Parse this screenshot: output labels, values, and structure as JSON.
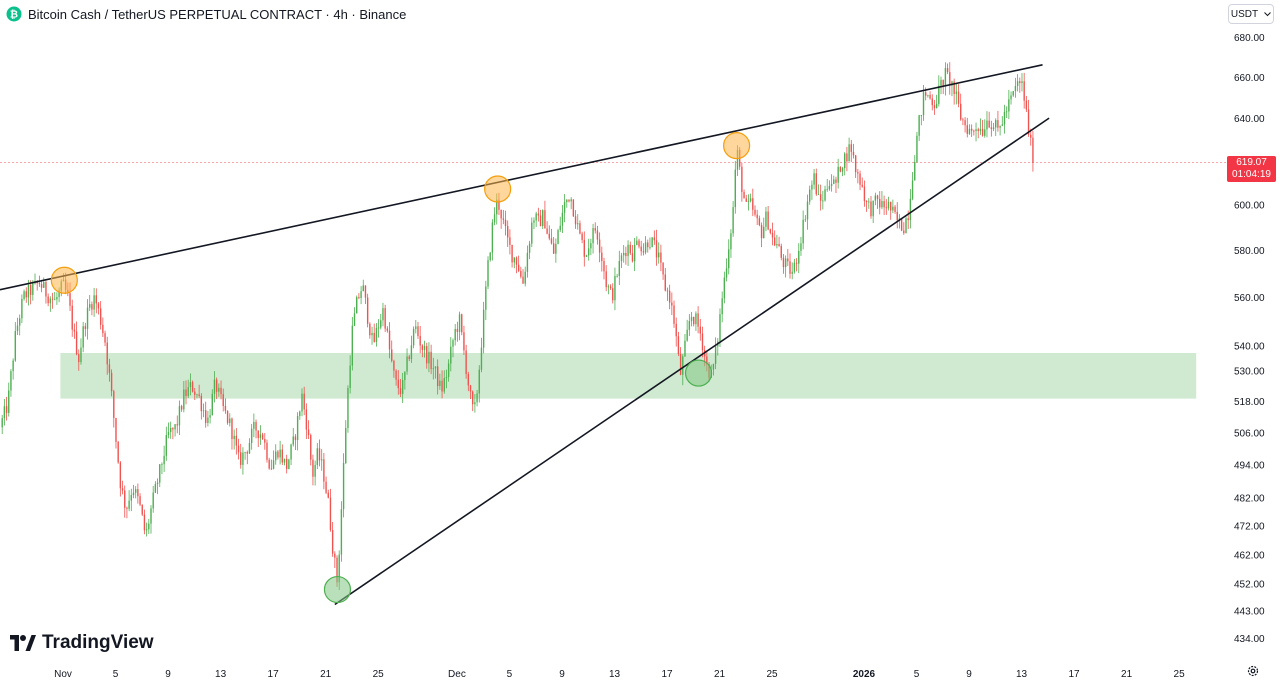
{
  "header": {
    "title": "Bitcoin Cash / TetherUS PERPETUAL CONTRACT · 4h · Binance",
    "symbol_icon": "bitcoin-cash-icon"
  },
  "currency_button": {
    "label": "USDT",
    "icon": "chevron-down-icon"
  },
  "last_price": {
    "value": "619.07",
    "countdown": "01:04:19",
    "color": "#f23645"
  },
  "branding": {
    "logo_text": "TradingView"
  },
  "settings_icon": "gear-icon",
  "colors": {
    "up": "#26a69a",
    "up_body": "#4caf50",
    "down": "#ef5350",
    "zone": "#c8e6c9",
    "top_marker": "#ffb74d",
    "bottom_marker": "#81c784"
  },
  "chart_data": {
    "type": "candlestick",
    "scale": "log",
    "y_ticks": [
      "680.00",
      "660.00",
      "640.00",
      "620.00",
      "600.00",
      "580.00",
      "560.00",
      "540.00",
      "530.00",
      "518.00",
      "506.00",
      "494.00",
      "482.00",
      "472.00",
      "462.00",
      "452.00",
      "443.00",
      "434.00"
    ],
    "y_tick_values": [
      680,
      660,
      640,
      620,
      600,
      580,
      560,
      540,
      530,
      518,
      506,
      494,
      482,
      472,
      462,
      452,
      443,
      434
    ],
    "x_ticks": [
      "Nov",
      "5",
      "9",
      "13",
      "17",
      "21",
      "25",
      "Dec",
      "5",
      "9",
      "13",
      "17",
      "21",
      "25",
      "2026",
      "5",
      "9",
      "13",
      "17",
      "21",
      "25"
    ],
    "x_tick_days": [
      0,
      4,
      8,
      12,
      16,
      20,
      24,
      30,
      34,
      38,
      42,
      46,
      50,
      54,
      61,
      65,
      69,
      73,
      77,
      81,
      85
    ],
    "ylim": [
      428,
      690
    ],
    "xlim_days": [
      -4.8,
      87.2
    ],
    "close_path": [
      [
        -4.8,
        508
      ],
      [
        -4.2,
        517
      ],
      [
        -3.6,
        545
      ],
      [
        -3.0,
        560
      ],
      [
        -2.4,
        563
      ],
      [
        -1.8,
        566
      ],
      [
        -1.2,
        561
      ],
      [
        -0.6,
        558
      ],
      [
        0.0,
        565
      ],
      [
        0.4,
        559
      ],
      [
        0.8,
        545
      ],
      [
        1.2,
        535
      ],
      [
        1.6,
        548
      ],
      [
        2.0,
        556
      ],
      [
        2.4,
        560
      ],
      [
        2.8,
        552
      ],
      [
        3.2,
        542
      ],
      [
        3.6,
        525
      ],
      [
        4.0,
        505
      ],
      [
        4.4,
        486
      ],
      [
        4.8,
        478
      ],
      [
        5.3,
        486
      ],
      [
        5.8,
        480
      ],
      [
        6.3,
        468
      ],
      [
        6.8,
        480
      ],
      [
        7.4,
        492
      ],
      [
        8.0,
        505
      ],
      [
        8.6,
        508
      ],
      [
        9.2,
        520
      ],
      [
        9.8,
        524
      ],
      [
        10.4,
        519
      ],
      [
        11.0,
        510
      ],
      [
        11.6,
        525
      ],
      [
        12.2,
        515
      ],
      [
        12.8,
        508
      ],
      [
        13.4,
        495
      ],
      [
        14.0,
        500
      ],
      [
        14.6,
        508
      ],
      [
        15.2,
        505
      ],
      [
        15.8,
        493
      ],
      [
        16.4,
        500
      ],
      [
        17.0,
        493
      ],
      [
        17.6,
        503
      ],
      [
        18.2,
        520
      ],
      [
        18.6,
        508
      ],
      [
        19.0,
        490
      ],
      [
        19.4,
        498
      ],
      [
        19.8,
        492
      ],
      [
        20.2,
        480
      ],
      [
        20.6,
        462
      ],
      [
        20.9,
        452
      ],
      [
        21.2,
        478
      ],
      [
        21.6,
        515
      ],
      [
        22.0,
        545
      ],
      [
        22.4,
        558
      ],
      [
        22.8,
        565
      ],
      [
        23.2,
        552
      ],
      [
        23.6,
        540
      ],
      [
        24.0,
        548
      ],
      [
        24.4,
        555
      ],
      [
        24.8,
        540
      ],
      [
        25.3,
        525
      ],
      [
        25.8,
        522
      ],
      [
        26.3,
        535
      ],
      [
        26.8,
        548
      ],
      [
        27.3,
        540
      ],
      [
        27.8,
        535
      ],
      [
        28.3,
        530
      ],
      [
        28.8,
        522
      ],
      [
        29.3,
        530
      ],
      [
        29.8,
        545
      ],
      [
        30.2,
        550
      ],
      [
        30.6,
        535
      ],
      [
        31.0,
        520
      ],
      [
        31.3,
        512
      ],
      [
        31.6,
        525
      ],
      [
        32.0,
        550
      ],
      [
        32.4,
        575
      ],
      [
        32.8,
        595
      ],
      [
        33.1,
        602
      ],
      [
        33.4,
        595
      ],
      [
        33.8,
        585
      ],
      [
        34.2,
        578
      ],
      [
        34.6,
        575
      ],
      [
        35.0,
        565
      ],
      [
        35.4,
        580
      ],
      [
        35.8,
        595
      ],
      [
        36.2,
        592
      ],
      [
        36.6,
        595
      ],
      [
        37.0,
        585
      ],
      [
        37.4,
        578
      ],
      [
        37.8,
        590
      ],
      [
        38.2,
        600
      ],
      [
        38.6,
        605
      ],
      [
        39.0,
        595
      ],
      [
        39.4,
        585
      ],
      [
        39.8,
        578
      ],
      [
        40.2,
        585
      ],
      [
        40.6,
        590
      ],
      [
        41.0,
        578
      ],
      [
        41.4,
        565
      ],
      [
        41.8,
        560
      ],
      [
        42.2,
        570
      ],
      [
        42.6,
        578
      ],
      [
        43.0,
        582
      ],
      [
        43.4,
        578
      ],
      [
        43.8,
        585
      ],
      [
        44.2,
        580
      ],
      [
        44.6,
        585
      ],
      [
        45.0,
        582
      ],
      [
        45.4,
        575
      ],
      [
        45.8,
        565
      ],
      [
        46.2,
        560
      ],
      [
        46.6,
        548
      ],
      [
        47.0,
        528
      ],
      [
        47.4,
        540
      ],
      [
        47.8,
        553
      ],
      [
        48.2,
        550
      ],
      [
        48.6,
        544
      ],
      [
        49.0,
        532
      ],
      [
        49.4,
        528
      ],
      [
        49.8,
        540
      ],
      [
        50.2,
        560
      ],
      [
        50.6,
        578
      ],
      [
        51.0,
        595
      ],
      [
        51.3,
        626
      ],
      [
        51.6,
        612
      ],
      [
        52.0,
        598
      ],
      [
        52.4,
        600
      ],
      [
        52.8,
        592
      ],
      [
        53.2,
        588
      ],
      [
        53.6,
        595
      ],
      [
        54.0,
        585
      ],
      [
        54.4,
        582
      ],
      [
        54.8,
        575
      ],
      [
        55.2,
        572
      ],
      [
        55.6,
        570
      ],
      [
        56.0,
        580
      ],
      [
        56.4,
        592
      ],
      [
        56.8,
        605
      ],
      [
        57.2,
        612
      ],
      [
        57.6,
        600
      ],
      [
        58.0,
        605
      ],
      [
        58.4,
        612
      ],
      [
        58.8,
        608
      ],
      [
        59.2,
        618
      ],
      [
        59.6,
        622
      ],
      [
        60.0,
        627
      ],
      [
        60.4,
        615
      ],
      [
        60.8,
        610
      ],
      [
        61.2,
        600
      ],
      [
        61.6,
        598
      ],
      [
        62.0,
        602
      ],
      [
        62.4,
        599
      ],
      [
        62.8,
        600
      ],
      [
        63.2,
        596
      ],
      [
        63.6,
        592
      ],
      [
        64.0,
        590
      ],
      [
        64.4,
        597
      ],
      [
        64.8,
        620
      ],
      [
        65.2,
        638
      ],
      [
        65.6,
        652
      ],
      [
        66.0,
        650
      ],
      [
        66.4,
        647
      ],
      [
        66.8,
        655
      ],
      [
        67.2,
        661
      ],
      [
        67.6,
        658
      ],
      [
        68.0,
        650
      ],
      [
        68.4,
        640
      ],
      [
        68.8,
        636
      ],
      [
        69.2,
        633
      ],
      [
        69.6,
        637
      ],
      [
        70.0,
        634
      ],
      [
        70.4,
        640
      ],
      [
        70.8,
        637
      ],
      [
        71.2,
        634
      ],
      [
        71.6,
        640
      ],
      [
        72.0,
        646
      ],
      [
        72.4,
        652
      ],
      [
        72.8,
        658
      ],
      [
        73.1,
        655
      ],
      [
        73.4,
        640
      ],
      [
        73.7,
        627
      ],
      [
        74.0,
        619
      ]
    ],
    "trendlines": [
      {
        "name": "upper-resistance",
        "from": [
          -4.8,
          563
        ],
        "to": [
          74.6,
          666
        ]
      },
      {
        "name": "lower-support",
        "from": [
          20.7,
          445
        ],
        "to": [
          75.1,
          640
        ]
      }
    ],
    "zone": {
      "from_day": -0.2,
      "to_day": 86.3,
      "low": 519,
      "high": 537
    },
    "markers": [
      {
        "type": "top",
        "day": 0.1,
        "price": 567
      },
      {
        "type": "top",
        "day": 33.1,
        "price": 607
      },
      {
        "type": "top",
        "day": 51.3,
        "price": 627
      },
      {
        "type": "bottom",
        "day": 20.9,
        "price": 450
      },
      {
        "type": "bottom",
        "day": 48.4,
        "price": 529
      }
    ]
  }
}
